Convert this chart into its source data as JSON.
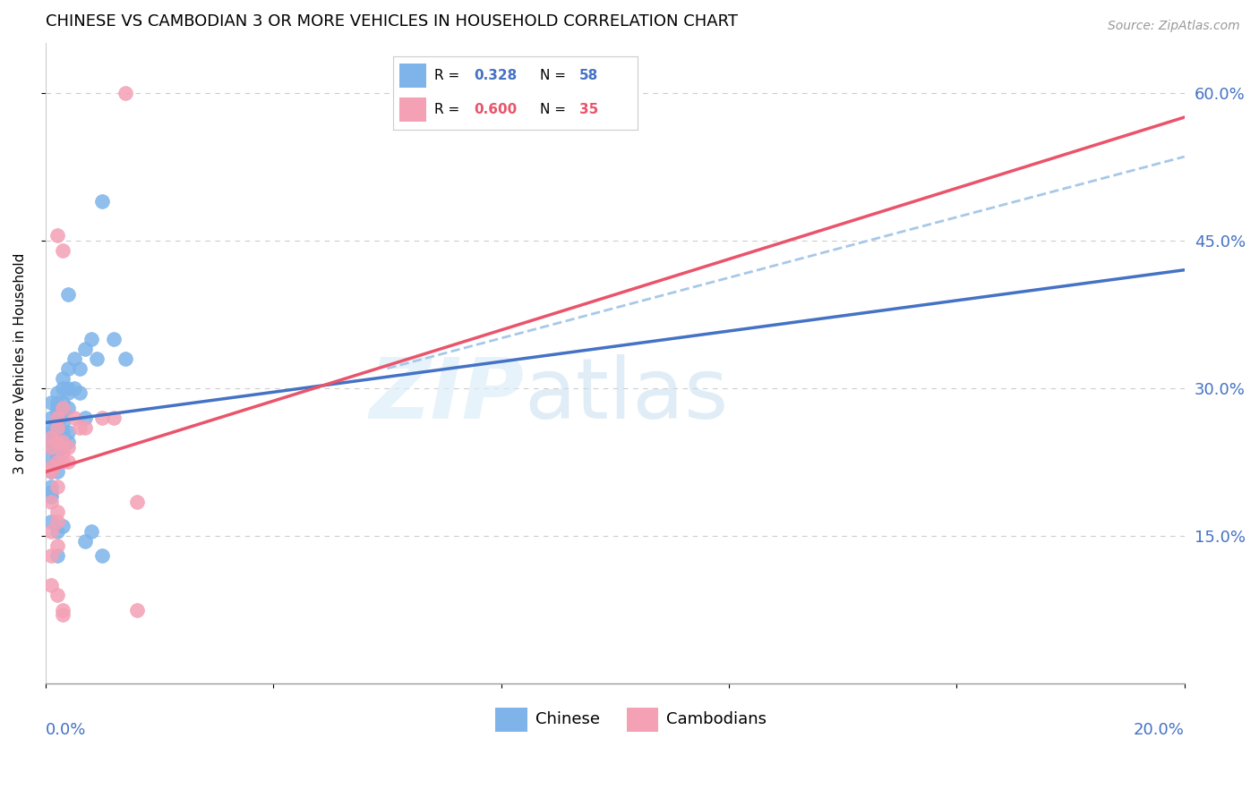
{
  "title": "CHINESE VS CAMBODIAN 3 OR MORE VEHICLES IN HOUSEHOLD CORRELATION CHART",
  "source": "Source: ZipAtlas.com",
  "ylabel": "3 or more Vehicles in Household",
  "y_ticks": [
    0.15,
    0.3,
    0.45,
    0.6
  ],
  "y_tick_labels": [
    "15.0%",
    "30.0%",
    "45.0%",
    "60.0%"
  ],
  "x_ticks": [
    0.0,
    0.04,
    0.08,
    0.12,
    0.16,
    0.2
  ],
  "x_lim": [
    0.0,
    0.2
  ],
  "y_lim": [
    0.0,
    0.65
  ],
  "watermark_zip": "ZIP",
  "watermark_atlas": "atlas",
  "legend_chinese_R": "0.328",
  "legend_chinese_N": "58",
  "legend_cambodian_R": "0.600",
  "legend_cambodian_N": "35",
  "chinese_color": "#7EB4EA",
  "cambodian_color": "#F4A0B5",
  "chinese_line_color": "#4472C4",
  "cambodian_line_color": "#E9546B",
  "dashed_line_color": "#A8C8E8",
  "chinese_trend_x": [
    0.0,
    0.2
  ],
  "chinese_trend_y": [
    0.265,
    0.42
  ],
  "cambodian_trend_x": [
    0.0,
    0.2
  ],
  "cambodian_trend_y": [
    0.215,
    0.575
  ],
  "dashed_trend_x": [
    0.06,
    0.2
  ],
  "dashed_trend_y": [
    0.32,
    0.535
  ],
  "chinese_points": [
    [
      0.001,
      0.285
    ],
    [
      0.001,
      0.27
    ],
    [
      0.001,
      0.26
    ],
    [
      0.001,
      0.255
    ],
    [
      0.001,
      0.245
    ],
    [
      0.001,
      0.24
    ],
    [
      0.001,
      0.23
    ],
    [
      0.001,
      0.22
    ],
    [
      0.001,
      0.215
    ],
    [
      0.001,
      0.2
    ],
    [
      0.001,
      0.195
    ],
    [
      0.001,
      0.19
    ],
    [
      0.001,
      0.165
    ],
    [
      0.002,
      0.295
    ],
    [
      0.002,
      0.285
    ],
    [
      0.002,
      0.28
    ],
    [
      0.002,
      0.275
    ],
    [
      0.002,
      0.265
    ],
    [
      0.002,
      0.26
    ],
    [
      0.002,
      0.25
    ],
    [
      0.002,
      0.245
    ],
    [
      0.002,
      0.24
    ],
    [
      0.002,
      0.235
    ],
    [
      0.002,
      0.23
    ],
    [
      0.002,
      0.215
    ],
    [
      0.002,
      0.155
    ],
    [
      0.002,
      0.13
    ],
    [
      0.003,
      0.31
    ],
    [
      0.003,
      0.3
    ],
    [
      0.003,
      0.285
    ],
    [
      0.003,
      0.275
    ],
    [
      0.003,
      0.265
    ],
    [
      0.003,
      0.255
    ],
    [
      0.003,
      0.25
    ],
    [
      0.003,
      0.245
    ],
    [
      0.003,
      0.24
    ],
    [
      0.003,
      0.16
    ],
    [
      0.004,
      0.395
    ],
    [
      0.004,
      0.32
    ],
    [
      0.004,
      0.3
    ],
    [
      0.004,
      0.295
    ],
    [
      0.004,
      0.28
    ],
    [
      0.004,
      0.255
    ],
    [
      0.004,
      0.245
    ],
    [
      0.005,
      0.33
    ],
    [
      0.005,
      0.3
    ],
    [
      0.006,
      0.32
    ],
    [
      0.006,
      0.295
    ],
    [
      0.007,
      0.34
    ],
    [
      0.007,
      0.27
    ],
    [
      0.007,
      0.145
    ],
    [
      0.008,
      0.35
    ],
    [
      0.008,
      0.155
    ],
    [
      0.009,
      0.33
    ],
    [
      0.01,
      0.49
    ],
    [
      0.01,
      0.13
    ],
    [
      0.012,
      0.35
    ],
    [
      0.014,
      0.33
    ]
  ],
  "cambodian_points": [
    [
      0.001,
      0.25
    ],
    [
      0.001,
      0.24
    ],
    [
      0.001,
      0.22
    ],
    [
      0.001,
      0.215
    ],
    [
      0.001,
      0.185
    ],
    [
      0.001,
      0.155
    ],
    [
      0.001,
      0.13
    ],
    [
      0.001,
      0.1
    ],
    [
      0.002,
      0.455
    ],
    [
      0.002,
      0.27
    ],
    [
      0.002,
      0.26
    ],
    [
      0.002,
      0.245
    ],
    [
      0.002,
      0.225
    ],
    [
      0.002,
      0.2
    ],
    [
      0.002,
      0.175
    ],
    [
      0.002,
      0.165
    ],
    [
      0.002,
      0.14
    ],
    [
      0.002,
      0.09
    ],
    [
      0.003,
      0.44
    ],
    [
      0.003,
      0.28
    ],
    [
      0.003,
      0.245
    ],
    [
      0.003,
      0.235
    ],
    [
      0.003,
      0.225
    ],
    [
      0.003,
      0.075
    ],
    [
      0.003,
      0.07
    ],
    [
      0.004,
      0.24
    ],
    [
      0.004,
      0.225
    ],
    [
      0.005,
      0.27
    ],
    [
      0.006,
      0.26
    ],
    [
      0.007,
      0.26
    ],
    [
      0.01,
      0.27
    ],
    [
      0.012,
      0.27
    ],
    [
      0.014,
      0.6
    ],
    [
      0.016,
      0.185
    ],
    [
      0.016,
      0.075
    ]
  ]
}
